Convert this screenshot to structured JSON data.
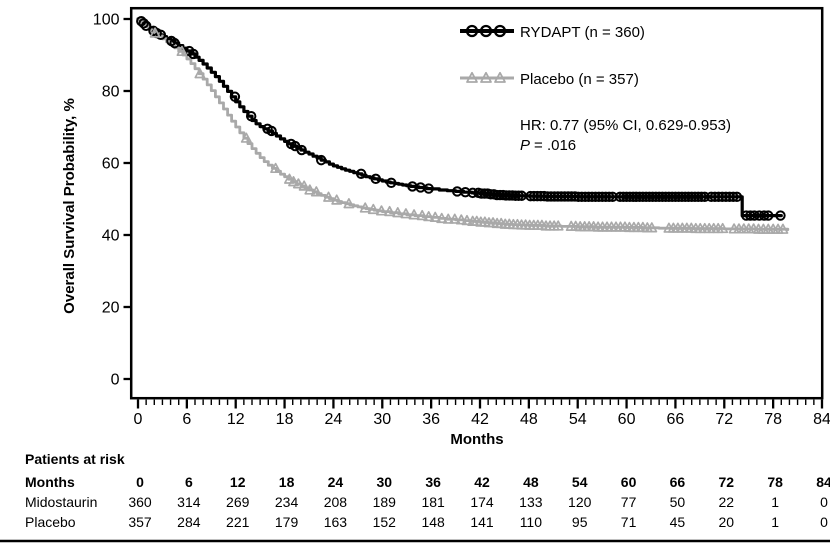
{
  "chart_data": {
    "type": "line",
    "subtype": "kaplan-meier-step",
    "title": "",
    "xlabel": "Months",
    "ylabel": "Overall Survival Probability, %",
    "xlim": [
      0,
      84
    ],
    "ylim": [
      0,
      100
    ],
    "x_ticks": [
      0,
      6,
      12,
      18,
      24,
      30,
      36,
      42,
      48,
      54,
      60,
      66,
      72,
      78,
      84
    ],
    "x_minor_tick_interval": 1,
    "y_ticks": [
      0,
      20,
      40,
      60,
      80,
      100
    ],
    "grid": false,
    "legend_position": "inside-upper-right",
    "annotation": {
      "hr": "HR: 0.77 (95% CI, 0.629-0.953)",
      "p_italic": "P",
      "p_rest": "= .016"
    },
    "series": [
      {
        "name": "RYDAPT (n = 360)",
        "color": "#000000",
        "marker": "circle",
        "line_width": 3.2,
        "points": [
          [
            0,
            100
          ],
          [
            0.3,
            99.4
          ],
          [
            0.7,
            98.8
          ],
          [
            1,
            98.1
          ],
          [
            1.4,
            97.4
          ],
          [
            1.8,
            96.7
          ],
          [
            2.2,
            96.1
          ],
          [
            2.6,
            95.6
          ],
          [
            3,
            95.1
          ],
          [
            3.5,
            94.5
          ],
          [
            4,
            93.9
          ],
          [
            4.5,
            93.3
          ],
          [
            5,
            92.6
          ],
          [
            5.5,
            91.9
          ],
          [
            6,
            91.1
          ],
          [
            6.5,
            90.3
          ],
          [
            7,
            89.4
          ],
          [
            7.5,
            88.5
          ],
          [
            8,
            87.5
          ],
          [
            8.5,
            86.4
          ],
          [
            9,
            85.2
          ],
          [
            9.5,
            84
          ],
          [
            10,
            82.7
          ],
          [
            10.5,
            81.3
          ],
          [
            11,
            79.9
          ],
          [
            11.5,
            78.4
          ],
          [
            12,
            77
          ],
          [
            12.5,
            75.6
          ],
          [
            13,
            74.3
          ],
          [
            13.5,
            73
          ],
          [
            14,
            71.8
          ],
          [
            14.5,
            70.9
          ],
          [
            15,
            70.1
          ],
          [
            15.5,
            69.5
          ],
          [
            16,
            68.9
          ],
          [
            16.5,
            68.2
          ],
          [
            17,
            67.5
          ],
          [
            17.5,
            66.7
          ],
          [
            18,
            66
          ],
          [
            18.5,
            65.3
          ],
          [
            19,
            64.7
          ],
          [
            19.5,
            64.1
          ],
          [
            20,
            63.6
          ],
          [
            20.5,
            63
          ],
          [
            21,
            62.5
          ],
          [
            21.5,
            61.9
          ],
          [
            22,
            61.4
          ],
          [
            22.5,
            60.8
          ],
          [
            23,
            60.3
          ],
          [
            23.5,
            59.7
          ],
          [
            24,
            59.2
          ],
          [
            24.5,
            58.8
          ],
          [
            25,
            58.4
          ],
          [
            25.5,
            58
          ],
          [
            26,
            57.7
          ],
          [
            26.5,
            57.3
          ],
          [
            27,
            57
          ],
          [
            27.5,
            56.6
          ],
          [
            28,
            56.2
          ],
          [
            28.5,
            55.9
          ],
          [
            29,
            55.6
          ],
          [
            29.5,
            55.3
          ],
          [
            30,
            55
          ],
          [
            30.5,
            54.7
          ],
          [
            31,
            54.5
          ],
          [
            31.5,
            54.3
          ],
          [
            32,
            54.1
          ],
          [
            32.5,
            53.9
          ],
          [
            33,
            53.7
          ],
          [
            33.5,
            53.5
          ],
          [
            34,
            53.4
          ],
          [
            34.5,
            53.2
          ],
          [
            35,
            53.1
          ],
          [
            35.5,
            52.9
          ],
          [
            36,
            52.8
          ],
          [
            37,
            52.5
          ],
          [
            38,
            52.3
          ],
          [
            39,
            52.1
          ],
          [
            40,
            51.9
          ],
          [
            41,
            51.7
          ],
          [
            42,
            51.5
          ],
          [
            43,
            51.3
          ],
          [
            44,
            51.1
          ],
          [
            45,
            51
          ],
          [
            46,
            50.9
          ],
          [
            48,
            50.8
          ],
          [
            50,
            50.7
          ],
          [
            54,
            50.6
          ],
          [
            74.2,
            50.6
          ],
          [
            74.2,
            45.4
          ],
          [
            75,
            45.4
          ],
          [
            79,
            45.4
          ]
        ],
        "censor_marks": [
          0.4,
          0.7,
          1.0,
          1.9,
          2.3,
          2.8,
          4.1,
          4.5,
          6.3,
          6.8,
          11.9,
          13.9,
          15.9,
          16.4,
          18.8,
          19.3,
          20.1,
          22.5,
          27.4,
          29.2,
          31.1,
          33.7,
          34.7,
          35.7,
          39.2,
          40.2,
          41.1,
          74.7,
          75.2,
          75.7,
          76.3,
          76.9,
          77.4,
          78.9
        ],
        "censor_runs": [
          {
            "from": 41.8,
            "to": 47.4,
            "step": 0.38
          },
          {
            "from": 48.2,
            "to": 58.4,
            "step": 0.42
          },
          {
            "from": 59.2,
            "to": 69.6,
            "step": 0.4
          },
          {
            "from": 70.4,
            "to": 73.9,
            "step": 0.45
          }
        ]
      },
      {
        "name": "Placebo (n = 357)",
        "color": "#a9a9a9",
        "marker": "triangle",
        "line_width": 2.8,
        "points": [
          [
            0,
            100
          ],
          [
            0.4,
            99.2
          ],
          [
            0.8,
            98.4
          ],
          [
            1.2,
            97.6
          ],
          [
            1.6,
            96.9
          ],
          [
            2,
            96.1
          ],
          [
            2.5,
            95.3
          ],
          [
            3,
            94.5
          ],
          [
            3.5,
            93.7
          ],
          [
            4,
            92.9
          ],
          [
            4.5,
            92
          ],
          [
            5,
            91
          ],
          [
            5.5,
            90
          ],
          [
            6,
            88.9
          ],
          [
            6.5,
            87.6
          ],
          [
            7,
            86.2
          ],
          [
            7.5,
            84.8
          ],
          [
            8,
            83.3
          ],
          [
            8.5,
            81.7
          ],
          [
            9,
            80.1
          ],
          [
            9.5,
            78.4
          ],
          [
            10,
            76.7
          ],
          [
            10.5,
            75
          ],
          [
            11,
            73.3
          ],
          [
            11.5,
            71.6
          ],
          [
            12,
            70
          ],
          [
            12.5,
            68.4
          ],
          [
            13,
            66.9
          ],
          [
            13.5,
            65.4
          ],
          [
            14,
            64
          ],
          [
            14.5,
            62.7
          ],
          [
            15,
            61.5
          ],
          [
            15.5,
            60.4
          ],
          [
            16,
            59.4
          ],
          [
            16.5,
            58.5
          ],
          [
            17,
            57.7
          ],
          [
            17.5,
            56.9
          ],
          [
            18,
            56.2
          ],
          [
            18.5,
            55.5
          ],
          [
            19,
            54.8
          ],
          [
            19.5,
            54.2
          ],
          [
            20,
            53.6
          ],
          [
            20.5,
            53
          ],
          [
            21,
            52.5
          ],
          [
            21.5,
            52
          ],
          [
            22,
            51.5
          ],
          [
            22.5,
            51
          ],
          [
            23,
            50.5
          ],
          [
            23.5,
            50.1
          ],
          [
            24,
            49.7
          ],
          [
            24.5,
            49.3
          ],
          [
            25,
            49
          ],
          [
            25.5,
            48.7
          ],
          [
            26,
            48.4
          ],
          [
            26.5,
            48.1
          ],
          [
            27,
            47.8
          ],
          [
            27.5,
            47.5
          ],
          [
            28,
            47.3
          ],
          [
            28.5,
            47.1
          ],
          [
            29,
            46.9
          ],
          [
            29.5,
            46.7
          ],
          [
            30,
            46.5
          ],
          [
            31,
            46.2
          ],
          [
            32,
            45.9
          ],
          [
            33,
            45.6
          ],
          [
            34,
            45.4
          ],
          [
            35,
            45.1
          ],
          [
            36,
            44.9
          ],
          [
            37,
            44.6
          ],
          [
            38,
            44.4
          ],
          [
            39,
            44.2
          ],
          [
            40,
            44
          ],
          [
            41,
            43.8
          ],
          [
            42,
            43.6
          ],
          [
            43,
            43.4
          ],
          [
            44,
            43.2
          ],
          [
            45,
            43
          ],
          [
            46,
            42.9
          ],
          [
            47,
            42.8
          ],
          [
            48,
            42.7
          ],
          [
            50,
            42.5
          ],
          [
            52,
            42.4
          ],
          [
            54,
            42.3
          ],
          [
            56,
            42.2
          ],
          [
            60,
            42.1
          ],
          [
            62,
            42
          ],
          [
            64,
            41.9
          ],
          [
            68,
            41.8
          ],
          [
            72,
            41.7
          ],
          [
            76,
            41.6
          ],
          [
            79.8,
            41.5
          ]
        ],
        "censor_marks": [
          2.1,
          5.4,
          7.6,
          13.3,
          16.9,
          18.6,
          19.1,
          19.7,
          20.4,
          21.1,
          21.9,
          23.4,
          24.4,
          25.9,
          27.9,
          28.9,
          29.9,
          30.9,
          31.9,
          32.9,
          33.9,
          34.9,
          35.7,
          36.5,
          37.3,
          38.1,
          38.9,
          39.7,
          40.4
        ],
        "censor_runs": [
          {
            "from": 41.1,
            "to": 51.9,
            "step": 0.5
          },
          {
            "from": 53.2,
            "to": 63.4,
            "step": 0.55
          },
          {
            "from": 65.2,
            "to": 71.8,
            "step": 0.55
          },
          {
            "from": 73.2,
            "to": 79.3,
            "step": 0.6
          }
        ]
      }
    ]
  },
  "risk_table": {
    "title": "Patients at risk",
    "row_header": "Months",
    "months": [
      0,
      6,
      12,
      18,
      24,
      30,
      36,
      42,
      48,
      54,
      60,
      66,
      72,
      78,
      84
    ],
    "rows": [
      {
        "label": "Midostaurin",
        "values": [
          360,
          314,
          269,
          234,
          208,
          189,
          181,
          174,
          133,
          120,
          77,
          50,
          22,
          1,
          0
        ]
      },
      {
        "label": "Placebo",
        "values": [
          357,
          284,
          221,
          179,
          163,
          152,
          148,
          141,
          110,
          95,
          71,
          45,
          20,
          1,
          0
        ]
      }
    ]
  }
}
